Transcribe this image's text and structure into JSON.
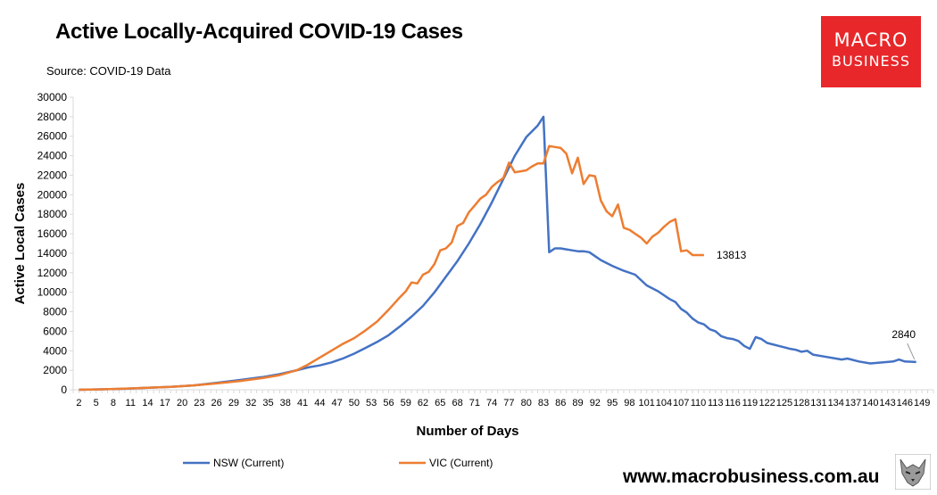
{
  "page": {
    "title": "Active Locally-Acquired COVID-19 Cases",
    "source": "Source: COVID-19 Data",
    "website": "www.macrobusiness.com.au",
    "logo": {
      "line1": "MACRO",
      "line2": "BUSINESS"
    }
  },
  "colors": {
    "nsw": "#4472c4",
    "vic": "#ed7d31",
    "logo_bg": "#e8272a",
    "axis": "#d9d9d9"
  },
  "chart_data": {
    "type": "line",
    "xlabel": "Number of Days",
    "ylabel": "Active Local Cases",
    "xlim": [
      1,
      151
    ],
    "ylim": [
      0,
      30000
    ],
    "yticks": [
      0,
      2000,
      4000,
      6000,
      8000,
      10000,
      12000,
      14000,
      16000,
      18000,
      20000,
      22000,
      24000,
      26000,
      28000,
      30000
    ],
    "xticks": [
      2,
      5,
      8,
      11,
      14,
      17,
      20,
      23,
      26,
      29,
      32,
      35,
      38,
      41,
      44,
      47,
      50,
      53,
      56,
      59,
      62,
      65,
      68,
      71,
      74,
      77,
      80,
      83,
      86,
      89,
      92,
      95,
      98,
      101,
      104,
      107,
      110,
      113,
      116,
      119,
      122,
      125,
      128,
      131,
      134,
      137,
      140,
      143,
      146,
      149
    ],
    "legend": "bottom",
    "series": [
      {
        "name": "NSW (Current)",
        "color": "#4472c4",
        "x": [
          2,
          6,
          10,
          14,
          18,
          22,
          26,
          30,
          34,
          37,
          40,
          42,
          44,
          46,
          48,
          50,
          52,
          54,
          56,
          58,
          60,
          62,
          64,
          66,
          68,
          70,
          72,
          74,
          76,
          78,
          80,
          82,
          83,
          84,
          85,
          86,
          87,
          88,
          89,
          90,
          91,
          92,
          93,
          95,
          97,
          99,
          101,
          103,
          105,
          106,
          107,
          108,
          109,
          110,
          111,
          112,
          113,
          114,
          115,
          116,
          117,
          118,
          119,
          120,
          121,
          122,
          124,
          126,
          127,
          128,
          129,
          130,
          132,
          134,
          135,
          136,
          138,
          140,
          142,
          144,
          145,
          146,
          148
        ],
        "values": [
          0,
          50,
          100,
          200,
          300,
          450,
          700,
          1000,
          1300,
          1600,
          2000,
          2300,
          2500,
          2800,
          3200,
          3700,
          4300,
          4900,
          5600,
          6500,
          7500,
          8600,
          10000,
          11600,
          13200,
          15000,
          17000,
          19200,
          21600,
          24000,
          25900,
          27100,
          28000,
          14100,
          14500,
          14500,
          14400,
          14300,
          14200,
          14200,
          14100,
          13700,
          13300,
          12700,
          12200,
          11800,
          10700,
          10100,
          9300,
          9000,
          8300,
          7900,
          7300,
          6900,
          6700,
          6200,
          6000,
          5500,
          5300,
          5200,
          5000,
          4500,
          4200,
          5400,
          5200,
          4800,
          4500,
          4200,
          4100,
          3900,
          4000,
          3600,
          3400,
          3200,
          3100,
          3200,
          2900,
          2700,
          2800,
          2900,
          3100,
          2900,
          2840
        ]
      },
      {
        "name": "VIC (Current)",
        "color": "#ed7d31",
        "x": [
          2,
          6,
          10,
          14,
          18,
          22,
          26,
          30,
          34,
          37,
          40,
          42,
          44,
          46,
          48,
          50,
          52,
          54,
          56,
          58,
          59,
          60,
          61,
          62,
          63,
          64,
          65,
          66,
          67,
          68,
          69,
          70,
          71,
          72,
          73,
          74,
          75,
          76,
          77,
          78,
          79,
          80,
          81,
          82,
          83,
          84,
          85,
          86,
          87,
          88,
          89,
          90,
          91,
          92,
          93,
          94,
          95,
          96,
          97,
          98,
          99,
          100,
          101,
          102,
          103,
          104,
          105,
          106,
          107,
          108,
          109,
          110,
          111
        ],
        "values": [
          0,
          50,
          120,
          200,
          300,
          450,
          650,
          900,
          1200,
          1500,
          2000,
          2600,
          3300,
          4000,
          4700,
          5300,
          6100,
          7000,
          8200,
          9500,
          10100,
          11000,
          10900,
          11800,
          12100,
          12900,
          14300,
          14500,
          15100,
          16800,
          17100,
          18200,
          18900,
          19600,
          20000,
          20800,
          21300,
          21700,
          23300,
          22300,
          22400,
          22500,
          22900,
          23200,
          23200,
          25000,
          24900,
          24800,
          24200,
          22200,
          23800,
          21100,
          22000,
          21900,
          19400,
          18300,
          17800,
          19000,
          16600,
          16400,
          16000,
          15600,
          15000,
          15700,
          16100,
          16700,
          17200,
          17500,
          14200,
          14300,
          13813,
          13813,
          13813
        ]
      }
    ],
    "annotations": [
      {
        "text": "13813",
        "x": 111,
        "y": 13813
      },
      {
        "text": "2840",
        "x": 148,
        "y": 2840
      }
    ]
  }
}
